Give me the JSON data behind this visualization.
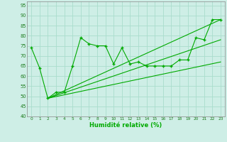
{
  "xlabel": "Humidité relative (%)",
  "bg_color": "#ceeee6",
  "grid_color": "#aaddcc",
  "line_color": "#00aa00",
  "xlim": [
    -0.5,
    23.5
  ],
  "ylim": [
    40,
    97
  ],
  "yticks": [
    40,
    45,
    50,
    55,
    60,
    65,
    70,
    75,
    80,
    85,
    90,
    95
  ],
  "xticks": [
    0,
    1,
    2,
    3,
    4,
    5,
    6,
    7,
    8,
    9,
    10,
    11,
    12,
    13,
    14,
    15,
    16,
    17,
    18,
    19,
    20,
    21,
    22,
    23
  ],
  "series1_x": [
    0,
    1,
    2,
    3,
    4,
    5,
    6,
    7,
    8,
    9,
    10,
    11,
    12,
    13,
    14,
    15,
    16,
    17,
    18,
    19,
    20,
    21,
    22,
    23
  ],
  "series1_y": [
    74,
    64,
    49,
    52,
    52,
    65,
    79,
    76,
    75,
    75,
    66,
    74,
    66,
    67,
    65,
    65,
    65,
    65,
    68,
    68,
    79,
    78,
    88,
    88
  ],
  "series2_x": [
    2,
    23
  ],
  "series2_y": [
    49,
    88
  ],
  "series3_x": [
    2,
    23
  ],
  "series3_y": [
    49,
    78
  ],
  "series4_x": [
    2,
    23
  ],
  "series4_y": [
    49,
    67
  ]
}
